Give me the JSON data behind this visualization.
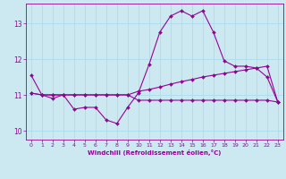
{
  "background_color": "#cce8f0",
  "grid_color": "#aaddee",
  "line_color": "#990099",
  "marker_color": "#990099",
  "xlabel": "Windchill (Refroidissement éolien,°C)",
  "xlabel_color": "#990099",
  "tick_color": "#990099",
  "xlim": [
    -0.5,
    23.5
  ],
  "ylim": [
    9.75,
    13.55
  ],
  "yticks": [
    10,
    11,
    12,
    13
  ],
  "xticks": [
    0,
    1,
    2,
    3,
    4,
    5,
    6,
    7,
    8,
    9,
    10,
    11,
    12,
    13,
    14,
    15,
    16,
    17,
    18,
    19,
    20,
    21,
    22,
    23
  ],
  "curve1_x": [
    0,
    1,
    2,
    3,
    4,
    5,
    6,
    7,
    8,
    9,
    10,
    11,
    12,
    13,
    14,
    15,
    16,
    17,
    18,
    19,
    20,
    21,
    22,
    23
  ],
  "curve1_y": [
    11.55,
    11.0,
    10.9,
    11.0,
    10.6,
    10.65,
    10.65,
    10.3,
    10.2,
    10.65,
    11.05,
    11.85,
    12.75,
    13.2,
    13.35,
    13.2,
    13.35,
    12.75,
    11.95,
    11.8,
    11.8,
    11.75,
    11.5,
    10.8
  ],
  "curve2_x": [
    0,
    1,
    2,
    3,
    4,
    5,
    6,
    7,
    8,
    9,
    10,
    11,
    12,
    13,
    14,
    15,
    16,
    17,
    18,
    19,
    20,
    21,
    22,
    23
  ],
  "curve2_y": [
    11.05,
    11.0,
    11.0,
    11.0,
    11.0,
    11.0,
    11.0,
    11.0,
    11.0,
    11.0,
    11.1,
    11.15,
    11.22,
    11.3,
    11.37,
    11.43,
    11.5,
    11.55,
    11.6,
    11.65,
    11.7,
    11.75,
    11.8,
    10.8
  ],
  "curve3_x": [
    0,
    1,
    2,
    3,
    4,
    5,
    6,
    7,
    8,
    9,
    10,
    11,
    12,
    13,
    14,
    15,
    16,
    17,
    18,
    19,
    20,
    21,
    22,
    23
  ],
  "curve3_y": [
    11.05,
    11.0,
    11.0,
    11.0,
    11.0,
    11.0,
    11.0,
    11.0,
    11.0,
    11.0,
    10.85,
    10.85,
    10.85,
    10.85,
    10.85,
    10.85,
    10.85,
    10.85,
    10.85,
    10.85,
    10.85,
    10.85,
    10.85,
    10.8
  ]
}
